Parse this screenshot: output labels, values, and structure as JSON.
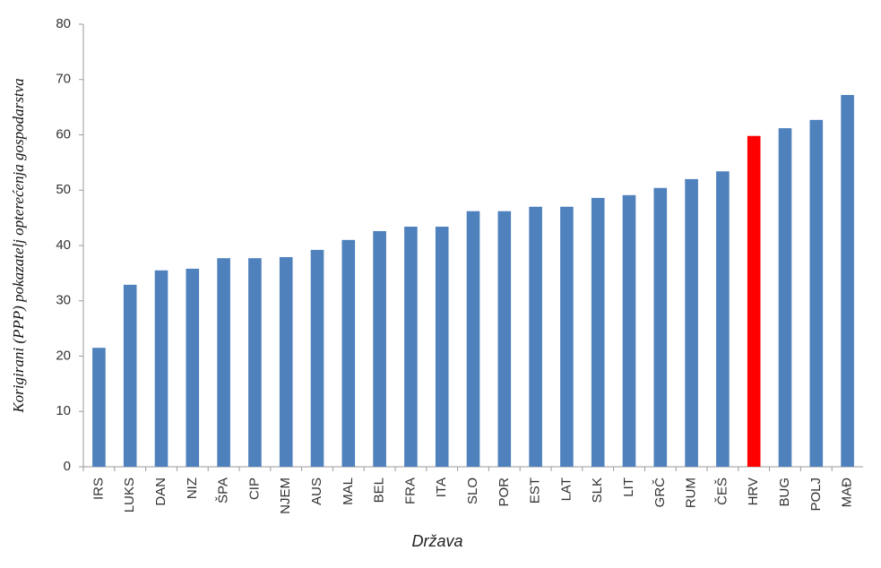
{
  "chart_data": {
    "type": "bar",
    "y_label": "Korigirani (PPP) pokazatelj opterećenja gospodarstva",
    "x_label": "Država",
    "categories": [
      "IRS",
      "LUKS",
      "DAN",
      "NIZ",
      "ŠPA",
      "CIP",
      "NJEM",
      "AUS",
      "MAL",
      "BEL",
      "FRA",
      "ITA",
      "SLO",
      "POR",
      "EST",
      "LAT",
      "SLK",
      "LIT",
      "GRČ",
      "RUM",
      "ČEŠ",
      "HRV",
      "BUG",
      "POLJ",
      "MAĐ"
    ],
    "values": [
      21.5,
      32.9,
      35.5,
      35.8,
      37.7,
      37.7,
      37.9,
      39.2,
      41.0,
      42.6,
      43.4,
      43.4,
      46.2,
      46.2,
      47.0,
      47.0,
      48.6,
      49.1,
      50.4,
      52.0,
      53.4,
      59.8,
      61.2,
      62.7,
      67.2
    ],
    "colors": [
      "#4f81bd",
      "#4f81bd",
      "#4f81bd",
      "#4f81bd",
      "#4f81bd",
      "#4f81bd",
      "#4f81bd",
      "#4f81bd",
      "#4f81bd",
      "#4f81bd",
      "#4f81bd",
      "#4f81bd",
      "#4f81bd",
      "#4f81bd",
      "#4f81bd",
      "#4f81bd",
      "#4f81bd",
      "#4f81bd",
      "#4f81bd",
      "#4f81bd",
      "#4f81bd",
      "#ff0000",
      "#4f81bd",
      "#4f81bd",
      "#4f81bd"
    ],
    "ylim": [
      0,
      80
    ],
    "yticks": [
      0,
      10,
      20,
      30,
      40,
      50,
      60,
      70,
      80
    ],
    "grid": false
  }
}
